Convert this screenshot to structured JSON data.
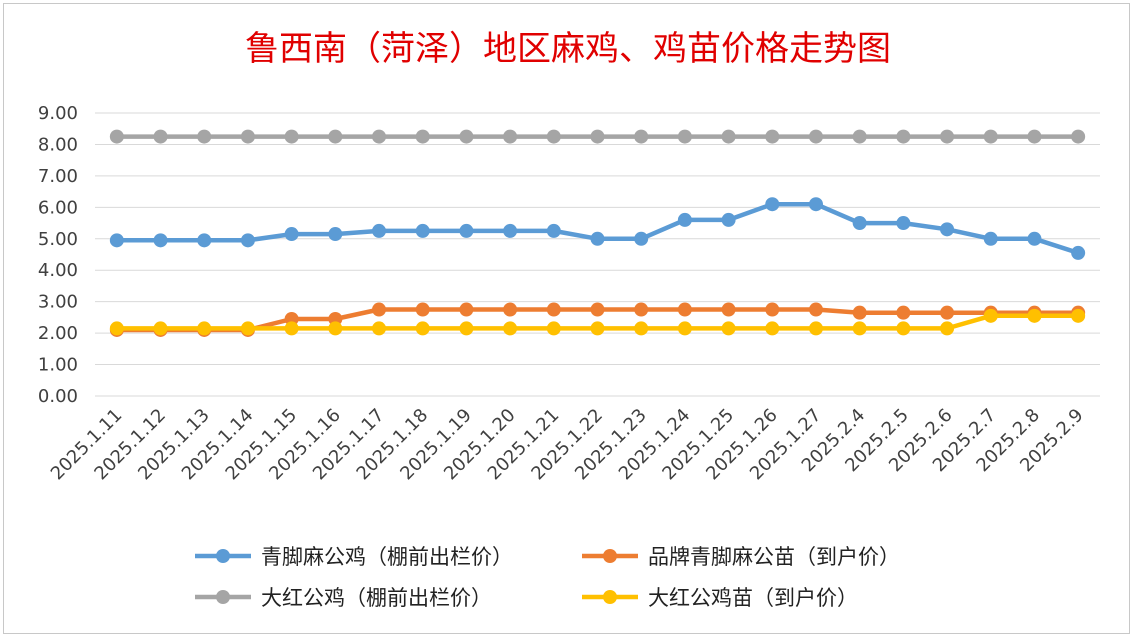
{
  "chart_data": {
    "type": "line",
    "title": "鲁西南（菏泽）地区麻鸡、鸡苗价格走势图",
    "title_color": "#e00000",
    "ylim": [
      0,
      9
    ],
    "y_ticks": [
      "0.00",
      "1.00",
      "2.00",
      "3.00",
      "4.00",
      "5.00",
      "6.00",
      "7.00",
      "8.00",
      "9.00"
    ],
    "grid": "horizontal",
    "legend_position": "bottom",
    "categories": [
      "2025.1.11",
      "2025.1.12",
      "2025.1.13",
      "2025.1.14",
      "2025.1.15",
      "2025.1.16",
      "2025.1.17",
      "2025.1.18",
      "2025.1.19",
      "2025.1.20",
      "2025.1.21",
      "2025.1.22",
      "2025.1.23",
      "2025.1.24",
      "2025.1.25",
      "2025.1.26",
      "2025.1.27",
      "2025.2.4",
      "2025.2.5",
      "2025.2.6",
      "2025.2.7",
      "2025.2.8",
      "2025.2.9"
    ],
    "series": [
      {
        "name": "青脚麻公鸡（棚前出栏价）",
        "color": "#5b9bd5",
        "values": [
          4.95,
          4.95,
          4.95,
          4.95,
          5.15,
          5.15,
          5.25,
          5.25,
          5.25,
          5.25,
          5.25,
          5.0,
          5.0,
          5.6,
          5.6,
          6.1,
          6.1,
          5.5,
          5.5,
          5.3,
          5.0,
          5.0,
          4.55
        ]
      },
      {
        "name": "品牌青脚麻公苗（到户价）",
        "color": "#ed7d31",
        "values": [
          2.1,
          2.1,
          2.1,
          2.1,
          2.45,
          2.45,
          2.75,
          2.75,
          2.75,
          2.75,
          2.75,
          2.75,
          2.75,
          2.75,
          2.75,
          2.75,
          2.75,
          2.65,
          2.65,
          2.65,
          2.65,
          2.65,
          2.65
        ]
      },
      {
        "name": "大红公鸡（棚前出栏价）",
        "color": "#a5a5a5",
        "values": [
          8.25,
          8.25,
          8.25,
          8.25,
          8.25,
          8.25,
          8.25,
          8.25,
          8.25,
          8.25,
          8.25,
          8.25,
          8.25,
          8.25,
          8.25,
          8.25,
          8.25,
          8.25,
          8.25,
          8.25,
          8.25,
          8.25,
          8.25
        ]
      },
      {
        "name": "大红公鸡苗（到户价）",
        "color": "#ffc000",
        "values": [
          2.15,
          2.15,
          2.15,
          2.15,
          2.15,
          2.15,
          2.15,
          2.15,
          2.15,
          2.15,
          2.15,
          2.15,
          2.15,
          2.15,
          2.15,
          2.15,
          2.15,
          2.15,
          2.15,
          2.15,
          2.55,
          2.55,
          2.55
        ]
      }
    ]
  }
}
